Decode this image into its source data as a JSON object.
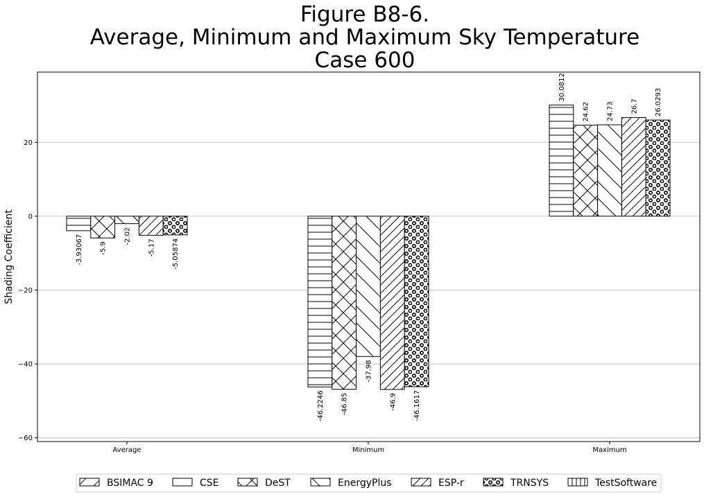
{
  "chart_data": {
    "type": "bar",
    "title": [
      "Figure B8-6.",
      "Average, Minimum and Maximum Sky Temperature",
      "Case 600"
    ],
    "xlabel": "",
    "ylabel": "Shading Coefficient",
    "ylim": [
      -61,
      39
    ],
    "yticks": [
      -60,
      -40,
      -20,
      0,
      20
    ],
    "grid": "y",
    "legend_position": "bottom",
    "categories": [
      "Average",
      "Minimum",
      "Maximum"
    ],
    "series": [
      {
        "name": "BSIMAC 9",
        "pattern": "hline",
        "values": [
          -3.93067,
          -46.2246,
          30.0812
        ],
        "labels": [
          "-3.93067",
          "-46.2246",
          "30.0812"
        ]
      },
      {
        "name": "CSE",
        "pattern": "cross",
        "values": [
          -5.9,
          -46.85,
          24.62
        ],
        "labels": [
          "-5.9",
          "-46.85",
          "24.62"
        ]
      },
      {
        "name": "DeST",
        "pattern": "bslash",
        "values": [
          -2.02,
          -37.98,
          24.73
        ],
        "labels": [
          "-2.02",
          "-37.98",
          "24.73"
        ]
      },
      {
        "name": "EnergyPlus",
        "pattern": "fslash",
        "values": [
          -5.17,
          -46.9,
          26.7
        ],
        "labels": [
          "-5.17",
          "-46.9",
          "26.7"
        ]
      },
      {
        "name": "ESP-r",
        "pattern": "dots",
        "values": [
          -5.05874,
          -46.1617,
          26.0293
        ],
        "labels": [
          "-5.05874",
          "-46.1617",
          "26.0293"
        ]
      }
    ],
    "legend": [
      {
        "name": "BSIMAC 9",
        "pattern": "fslash-light"
      },
      {
        "name": "CSE",
        "pattern": "none"
      },
      {
        "name": "DeST",
        "pattern": "cross"
      },
      {
        "name": "EnergyPlus",
        "pattern": "bslash"
      },
      {
        "name": "ESP-r",
        "pattern": "fslash"
      },
      {
        "name": "TRNSYS",
        "pattern": "dots"
      },
      {
        "name": "TestSoftware",
        "pattern": "vline"
      }
    ]
  }
}
